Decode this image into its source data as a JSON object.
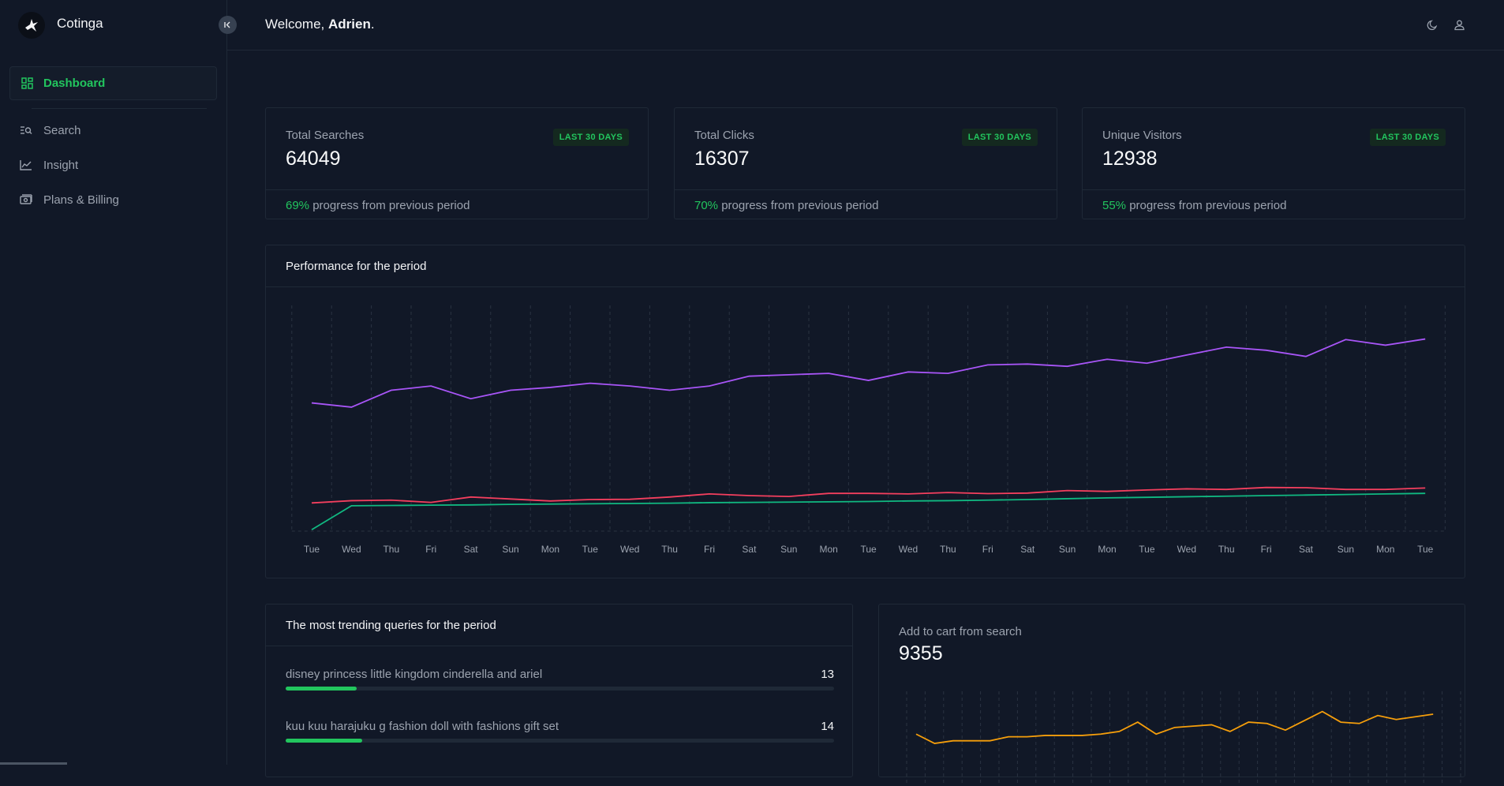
{
  "app": {
    "name": "Cotinga"
  },
  "sidebar": {
    "items": [
      {
        "label": "Dashboard",
        "icon": "dashboard-grid-icon",
        "active": true
      },
      {
        "label": "Search",
        "icon": "search-list-icon"
      },
      {
        "label": "Insight",
        "icon": "chart-line-icon"
      },
      {
        "label": "Plans & Billing",
        "icon": "billing-icon"
      }
    ]
  },
  "header": {
    "greeting": "Welcome, ",
    "user": "Adrien",
    "punct": "."
  },
  "stats": [
    {
      "title": "Total Searches",
      "value": "64049",
      "badge": "LAST 30 DAYS",
      "pct": "69%",
      "foot": " progress from previous period"
    },
    {
      "title": "Total Clicks",
      "value": "16307",
      "badge": "LAST 30 DAYS",
      "pct": "70%",
      "foot": " progress from previous period"
    },
    {
      "title": "Unique Visitors",
      "value": "12938",
      "badge": "LAST 30 DAYS",
      "pct": "55%",
      "foot": " progress from previous period"
    }
  ],
  "colors": {
    "accent": "#22c55e",
    "purple": "#a855f7",
    "red": "#f43f5e",
    "teal": "#10b981",
    "orange": "#f59e0b"
  },
  "performance": {
    "title": "Performance for the period",
    "chart_data": {
      "type": "line",
      "categories": [
        "Tue",
        "Wed",
        "Thu",
        "Fri",
        "Sat",
        "Sun",
        "Mon",
        "Tue",
        "Wed",
        "Thu",
        "Fri",
        "Sat",
        "Sun",
        "Mon",
        "Tue",
        "Wed",
        "Thu",
        "Fri",
        "Sat",
        "Sun",
        "Mon",
        "Tue",
        "Wed",
        "Thu",
        "Fri",
        "Sat",
        "Sun",
        "Mon",
        "Tue"
      ],
      "series": [
        {
          "color": "#a855f7",
          "values": [
            545,
            530,
            590,
            605,
            560,
            590,
            600,
            615,
            605,
            590,
            605,
            640,
            645,
            650,
            625,
            655,
            650,
            680,
            683,
            675,
            700,
            686,
            715,
            743,
            732,
            710,
            770,
            750,
            772
          ]
        },
        {
          "color": "#f43f5e",
          "values": [
            190,
            198,
            200,
            192,
            211,
            204,
            197,
            202,
            203,
            211,
            222,
            216,
            213,
            224,
            224,
            222,
            227,
            223,
            225,
            234,
            231,
            236,
            240,
            238,
            245,
            244,
            238,
            238,
            243
          ]
        },
        {
          "color": "#10b981",
          "values": [
            95,
            180,
            181,
            182,
            183,
            185,
            186,
            187,
            188,
            189,
            191,
            192,
            193,
            194,
            195,
            197,
            198,
            200,
            202,
            205,
            208,
            210,
            212,
            214,
            216,
            218,
            220,
            222,
            224
          ]
        }
      ],
      "ylim": [
        90,
        880
      ],
      "grid": "vertical-dashed"
    }
  },
  "trending": {
    "title": "The most trending queries for the period",
    "rows": [
      {
        "query": "disney princess little kingdom cinderella and ariel",
        "count": "13",
        "fraction": 0.13
      },
      {
        "query": "kuu kuu harajuku g fashion doll with fashions gift set",
        "count": "14",
        "fraction": 0.14
      }
    ]
  },
  "cart": {
    "title": "Add to cart from search",
    "value": "9355",
    "chart_data": {
      "type": "line",
      "series": [
        {
          "color": "#f59e0b",
          "values": [
            39,
            32,
            34,
            34,
            34,
            37,
            37,
            38,
            38,
            38,
            39,
            41,
            48,
            39,
            44,
            45,
            46,
            41,
            48,
            47,
            42,
            49,
            56,
            48,
            47,
            53,
            50,
            52,
            54
          ]
        }
      ],
      "ylim": [
        0,
        70
      ]
    }
  }
}
